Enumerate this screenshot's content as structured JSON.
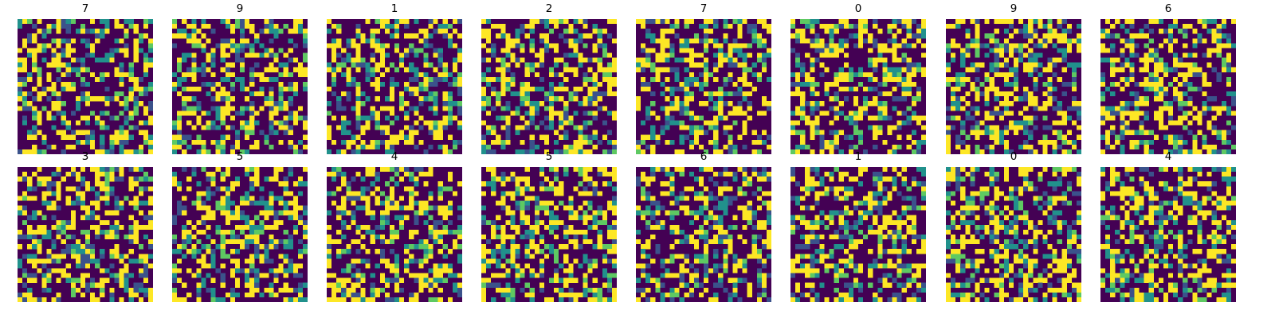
{
  "chart_data": {
    "type": "heatmap",
    "layout": "grid of image panels, 2 rows x 8 columns",
    "grid": {
      "rows": 2,
      "cols": 8
    },
    "cell_grid": 28,
    "axis": "off",
    "colormap": "viridis",
    "palette": [
      "#440154",
      "#3b528b",
      "#21918c",
      "#5ec962",
      "#fde725"
    ],
    "panels": [
      {
        "title": "7"
      },
      {
        "title": "9"
      },
      {
        "title": "1"
      },
      {
        "title": "2"
      },
      {
        "title": "7"
      },
      {
        "title": "0"
      },
      {
        "title": "9"
      },
      {
        "title": "6"
      },
      {
        "title": "3"
      },
      {
        "title": "5"
      },
      {
        "title": "4"
      },
      {
        "title": "5"
      },
      {
        "title": "6"
      },
      {
        "title": "1"
      },
      {
        "title": "0"
      },
      {
        "title": "4"
      }
    ]
  }
}
